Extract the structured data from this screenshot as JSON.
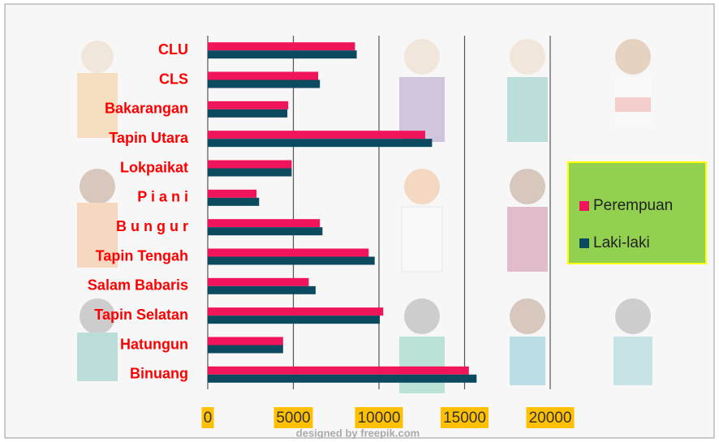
{
  "chart_data": {
    "type": "hbar",
    "categories": [
      "CLU",
      "CLS",
      "Bakarangan",
      "Tapin Utara",
      "Lokpaikat",
      "P i a n i",
      "B u n g u r",
      "Tapin Tengah",
      "Salam Babaris",
      "Tapin Selatan",
      "Hatungun",
      "Binuang"
    ],
    "series": [
      {
        "name": "Perempuan",
        "color": "#f0145a",
        "values": [
          8600,
          6450,
          4700,
          12700,
          4900,
          2850,
          6550,
          9400,
          5900,
          10250,
          4400,
          15250
        ]
      },
      {
        "name": "Laki-laki",
        "color": "#0b4a5f",
        "values": [
          8700,
          6550,
          4650,
          13100,
          4900,
          3000,
          6700,
          9750,
          6300,
          10050,
          4400,
          15700
        ]
      }
    ],
    "xlim": [
      0,
      20000
    ],
    "xticks": [
      0,
      5000,
      10000,
      15000,
      20000
    ],
    "grid": true,
    "legend": "right",
    "credit": "designed by freepik.com"
  }
}
